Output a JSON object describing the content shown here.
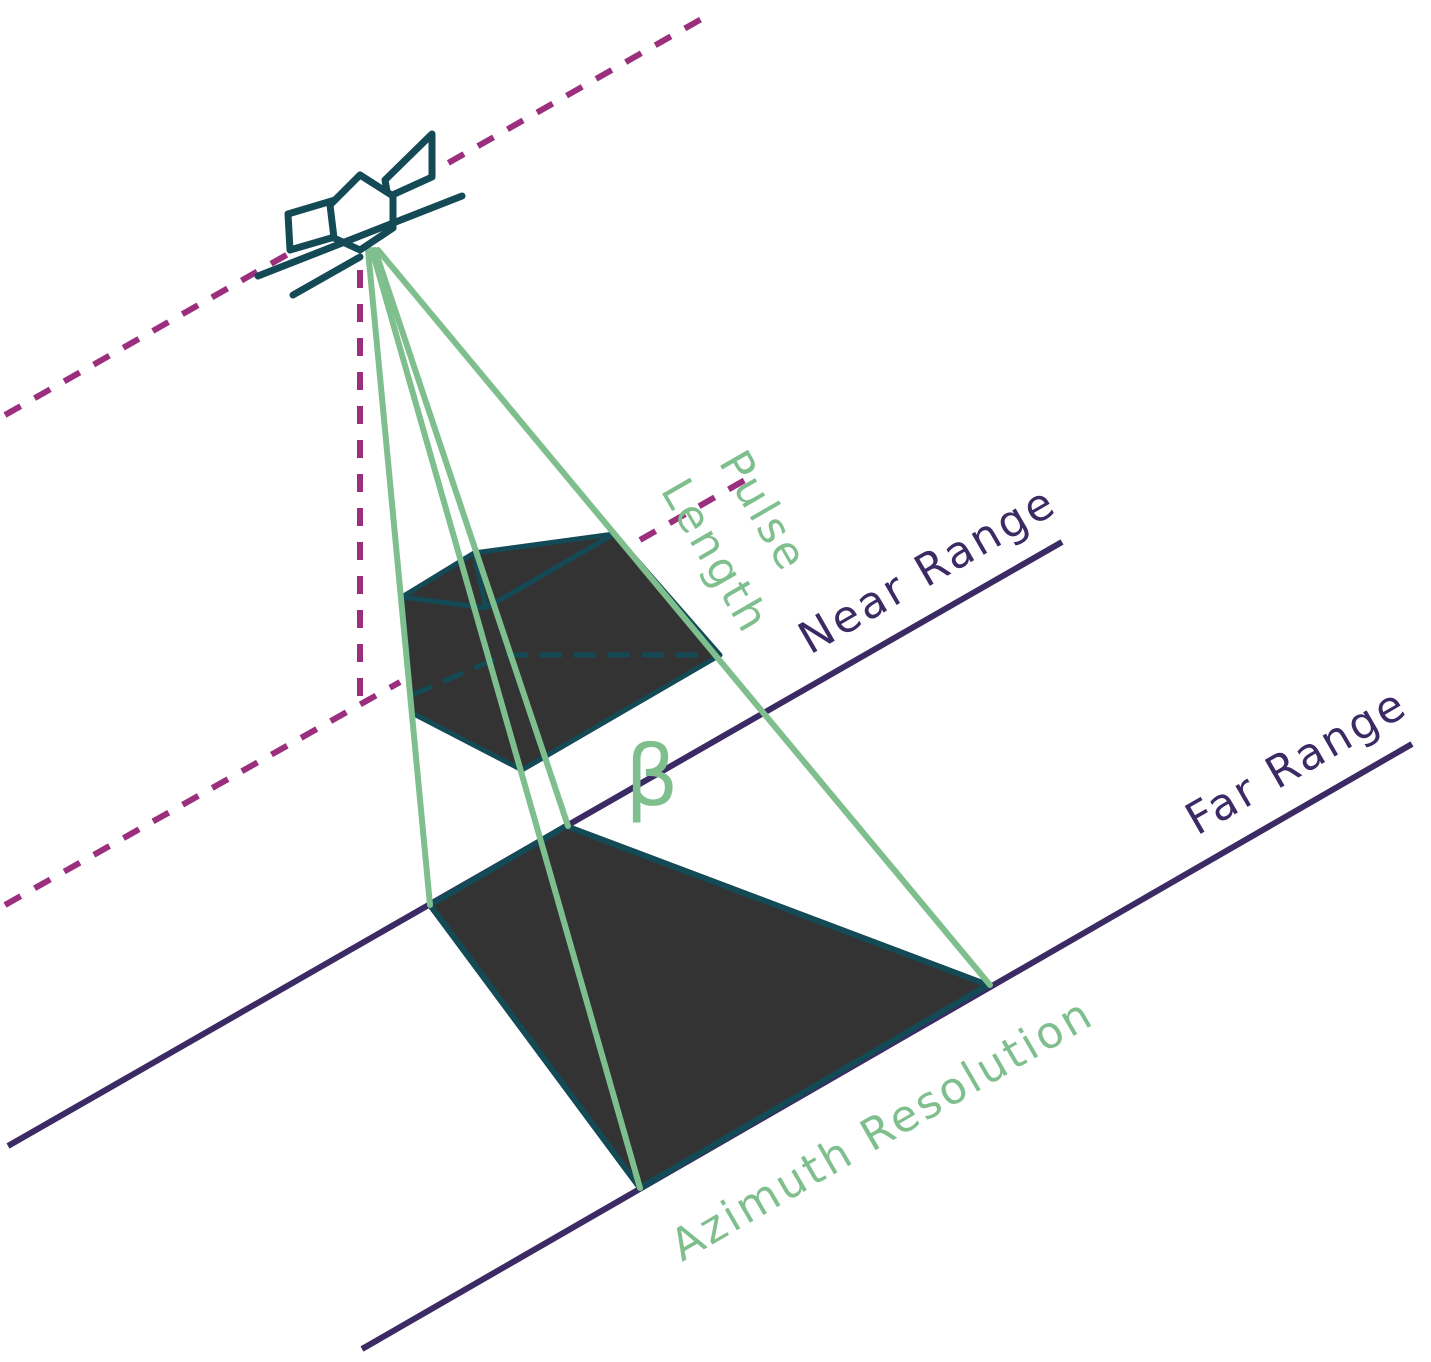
{
  "labels": {
    "near_range": "Near Range",
    "far_range": "Far Range",
    "pulse": "Pulse",
    "length": "Length",
    "azimuth_resolution": "Azimuth Resolution",
    "beta": "β"
  },
  "colors": {
    "range_line": "#3b2a63",
    "flight_path": "#9b2f7e",
    "beam": "#7fbf8e",
    "satellite": "#134a56",
    "footprint_fill": "#333333",
    "footprint_edge": "#134a56",
    "background": "#ffffff"
  },
  "icons": {
    "satellite": "satellite-icon"
  }
}
